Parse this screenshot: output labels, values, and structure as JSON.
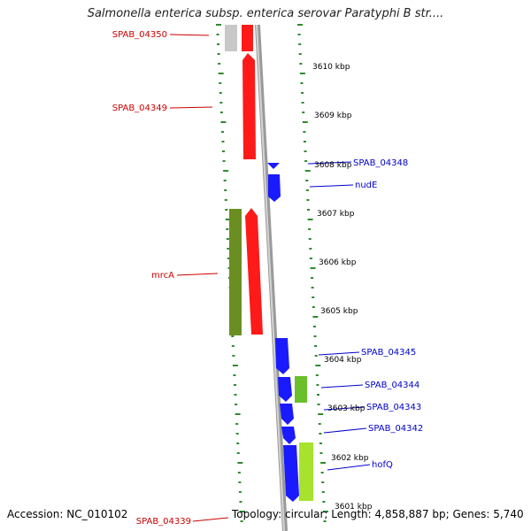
{
  "title": "Salmonella enterica subsp. enterica serovar Paratyphi B str....",
  "accession": "Accession: NC_010102",
  "summary": "Topology: circular; Length: 4,858,887 bp; Genes: 5,740",
  "colors": {
    "forward_cds": "#ff1a1a",
    "reverse_cds": "#1a1aff",
    "olive_feature": "#6b8e23",
    "lime_feature": "#a6e22e",
    "pseudo_gray": "#c8c8c8",
    "backbone": "#8a8a8a",
    "ticks": "#2e8b2e",
    "left_labels": "#cc0000",
    "right_labels": "#0000cc"
  },
  "scale_labels": [
    "3610 kbp",
    "3609 kbp",
    "3608 kbp",
    "3607 kbp",
    "3606 kbp",
    "3605 kbp",
    "3604 kbp",
    "3603 kbp",
    "3602 kbp",
    "3601 kbp"
  ],
  "left_genes": [
    "SPAB_04350",
    "SPAB_04349",
    "mrcA",
    "SPAB_04339"
  ],
  "right_genes": [
    "SPAB_04348",
    "nudE",
    "SPAB_04345",
    "SPAB_04344",
    "SPAB_04343",
    "SPAB_04342",
    "hofQ"
  ]
}
